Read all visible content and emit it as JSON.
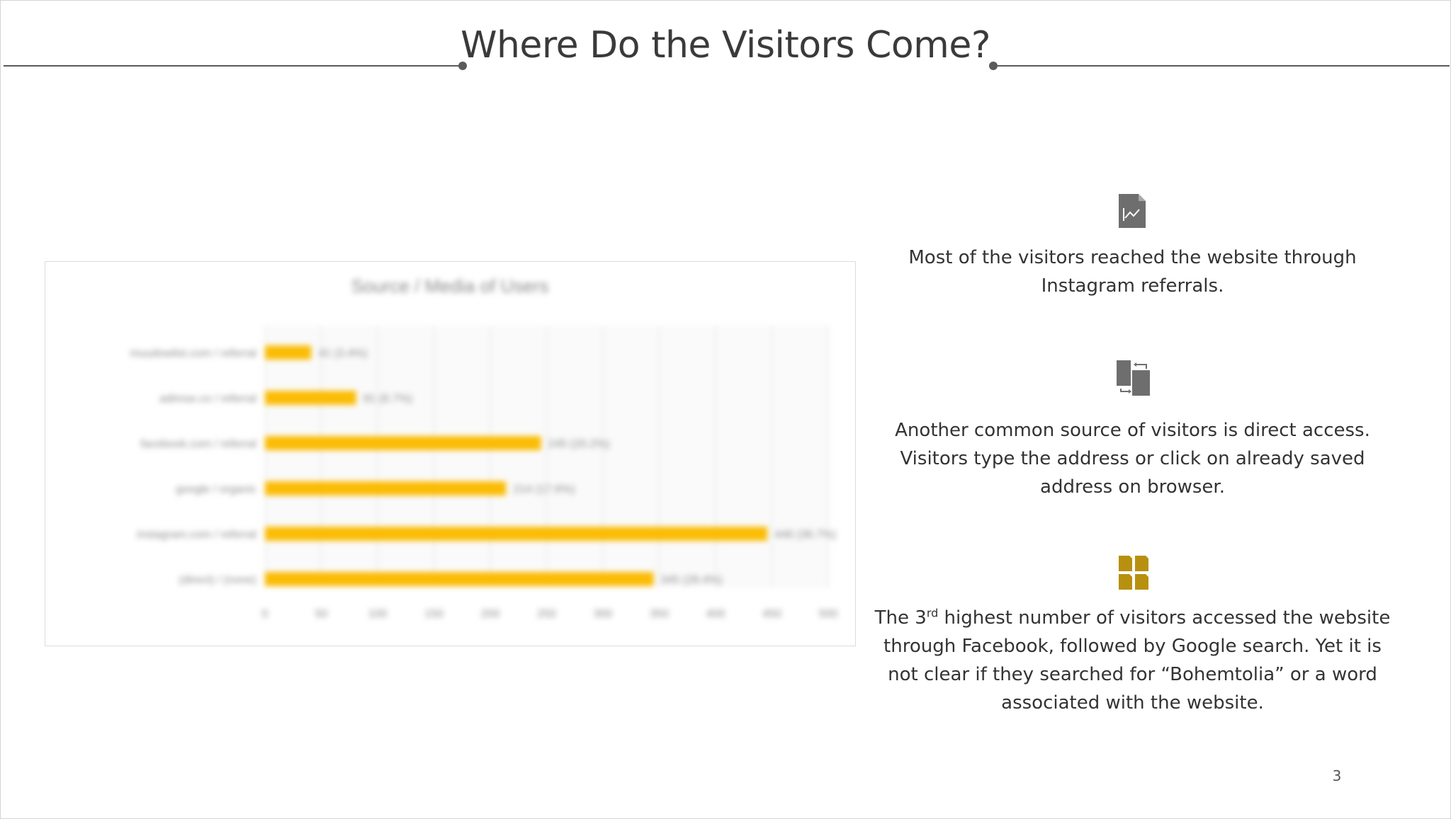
{
  "slide": {
    "title": "Where Do the Visitors Come?",
    "page_number": "3"
  },
  "points": [
    {
      "icon": "line-chart-document-icon",
      "icon_color": "#6e6e6e",
      "text": "Most of the visitors reached the website through Instagram referrals."
    },
    {
      "icon": "swap-documents-icon",
      "icon_color": "#6e6e6e",
      "text": "Another common source of visitors is direct access. Visitors type the address or click on already saved address on browser."
    },
    {
      "icon": "four-documents-icon",
      "icon_color": "#b8900f",
      "text_before": "The 3",
      "text_sup": "rd",
      "text_after": " highest number of visitors accessed the website through Facebook, followed by Google search. Yet it is not clear if they searched for “Bohemtolia” or a word associated with the website."
    }
  ],
  "chart_data": {
    "type": "bar",
    "orientation": "horizontal",
    "title": "Source / Media of Users",
    "categories": [
      "muudowlist.com / referral",
      "adimse.co / referral",
      "facebook.com / referral",
      "google / organic",
      "instagram.com / referral",
      "(direct) / (none)"
    ],
    "values": [
      41,
      81,
      245,
      214,
      446,
      345
    ],
    "data_labels": [
      "41 (3.4%)",
      "81 (6.7%)",
      "245 (20.2%)",
      "214 (17.6%)",
      "446 (36.7%)",
      "345 (28.4%)"
    ],
    "xlim": [
      0,
      500
    ],
    "xticks": [
      "0",
      "50",
      "100",
      "150",
      "200",
      "250",
      "300",
      "350",
      "400",
      "450",
      "500"
    ],
    "bar_color": "#fbbc04",
    "grid": true,
    "legend": "none",
    "blurred": true
  }
}
